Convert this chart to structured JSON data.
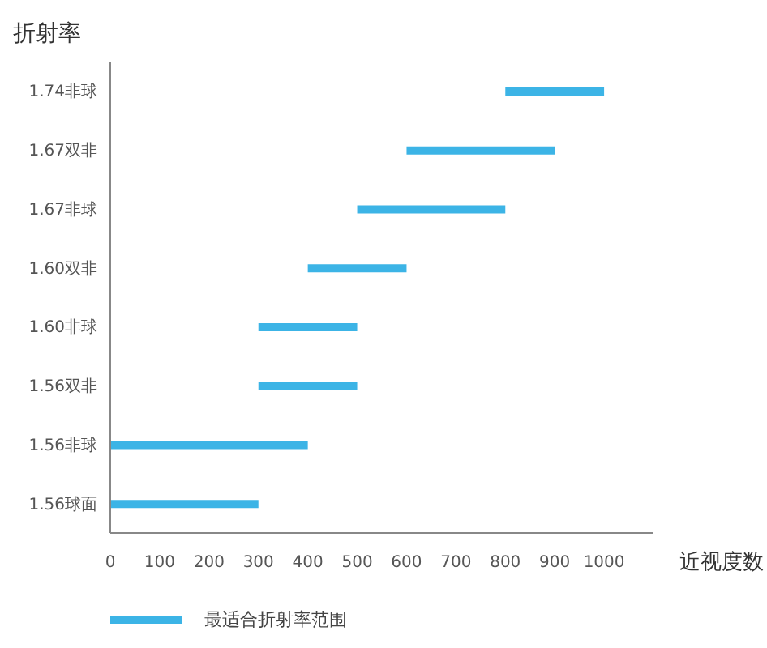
{
  "chart_data": {
    "type": "bar",
    "orientation": "horizontal",
    "ylabel": "折射率",
    "xlabel": "近视度数",
    "categories": [
      "1.74非球",
      "1.67双非",
      "1.67非球",
      "1.60双非",
      "1.60非球",
      "1.56双非",
      "1.56非球",
      "1.56球面"
    ],
    "series": [
      {
        "name": "最适合折射率范围",
        "color": "#3cb4e6",
        "base": [
          800,
          600,
          500,
          400,
          300,
          300,
          0,
          0
        ],
        "values": [
          200,
          300,
          300,
          200,
          200,
          200,
          400,
          300
        ]
      }
    ],
    "xlim": [
      0,
      1100
    ],
    "xticks": [
      0,
      100,
      200,
      300,
      400,
      500,
      600,
      700,
      800,
      900,
      1000
    ],
    "grid": false,
    "legend": "bottom left"
  }
}
